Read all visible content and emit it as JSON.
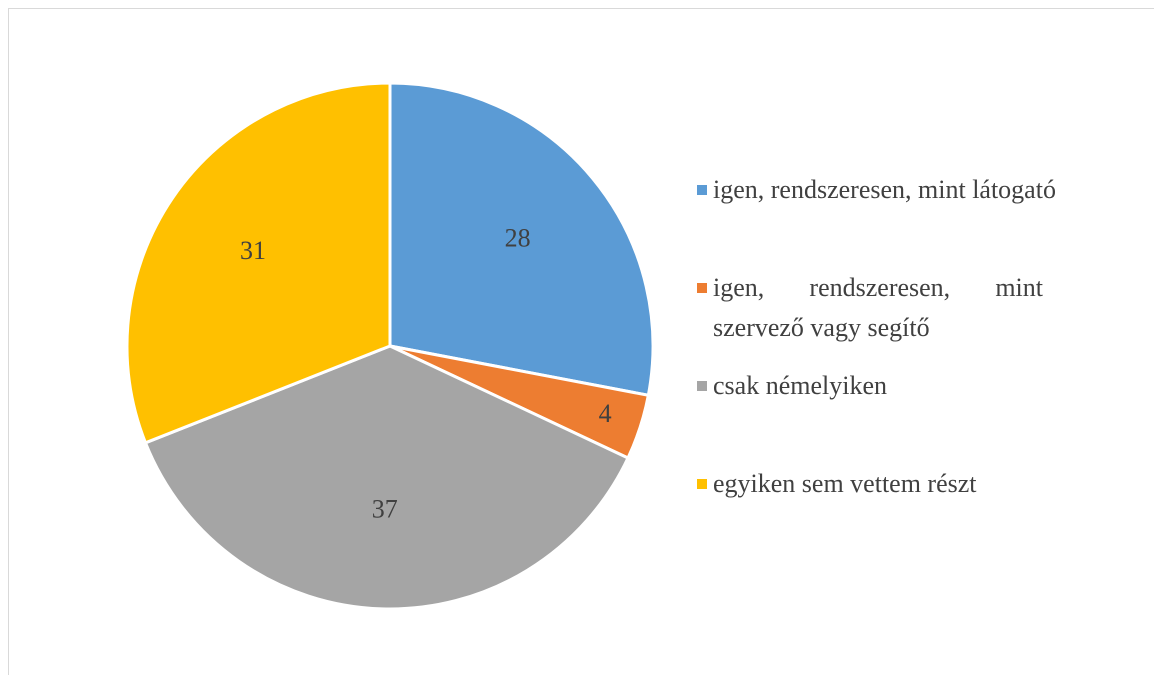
{
  "chart_data": {
    "type": "pie",
    "categories": [
      "igen, rendszeresen, mint látogató",
      "igen, rendszeresen, mint szervező vagy segítő",
      "csak némelyiken",
      "egyiken sem vettem részt"
    ],
    "values": [
      28,
      4,
      37,
      31
    ],
    "colors": [
      "#5b9bd5",
      "#ed7d31",
      "#a5a5a5",
      "#ffc000"
    ],
    "legend": "right"
  }
}
